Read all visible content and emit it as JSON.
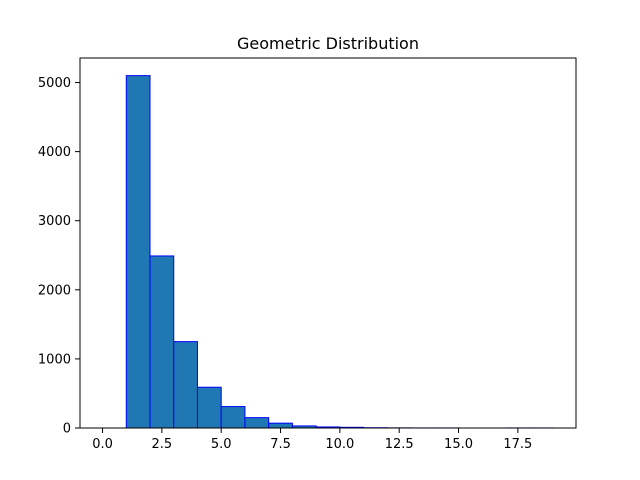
{
  "chart_data": {
    "type": "bar",
    "title": "Geometric Distribution",
    "xlabel": "",
    "ylabel": "",
    "bins": [
      {
        "x0": 1,
        "x1": 2,
        "count": 5100
      },
      {
        "x0": 2,
        "x1": 3,
        "count": 2490
      },
      {
        "x0": 3,
        "x1": 4,
        "count": 1250
      },
      {
        "x0": 4,
        "x1": 5,
        "count": 590
      },
      {
        "x0": 5,
        "x1": 6,
        "count": 310
      },
      {
        "x0": 6,
        "x1": 7,
        "count": 150
      },
      {
        "x0": 7,
        "x1": 8,
        "count": 70
      },
      {
        "x0": 8,
        "x1": 9,
        "count": 30
      },
      {
        "x0": 9,
        "x1": 10,
        "count": 15
      },
      {
        "x0": 10,
        "x1": 11,
        "count": 10
      },
      {
        "x0": 11,
        "x1": 12,
        "count": 4
      },
      {
        "x0": 12,
        "x1": 13,
        "count": 2
      },
      {
        "x0": 13,
        "x1": 14,
        "count": 1
      },
      {
        "x0": 14,
        "x1": 15,
        "count": 1
      },
      {
        "x0": 15,
        "x1": 16,
        "count": 0
      },
      {
        "x0": 16,
        "x1": 17,
        "count": 0
      },
      {
        "x0": 17,
        "x1": 18,
        "count": 1
      },
      {
        "x0": 18,
        "x1": 19,
        "count": 1
      }
    ],
    "xlim": [
      -0.95,
      19.95
    ],
    "ylim": [
      0,
      5355
    ],
    "xticks": [
      0.0,
      2.5,
      5.0,
      7.5,
      10.0,
      12.5,
      15.0,
      17.5
    ],
    "xtick_labels": [
      "0.0",
      "2.5",
      "5.0",
      "7.5",
      "10.0",
      "12.5",
      "15.0",
      "17.5"
    ],
    "yticks": [
      0,
      1000,
      2000,
      3000,
      4000,
      5000
    ],
    "ytick_labels": [
      "0",
      "1000",
      "2000",
      "3000",
      "4000",
      "5000"
    ],
    "grid": false,
    "colors": {
      "bar_fill": "#1f77b4",
      "bar_edge": "#0000ff",
      "axis": "#000000"
    }
  }
}
